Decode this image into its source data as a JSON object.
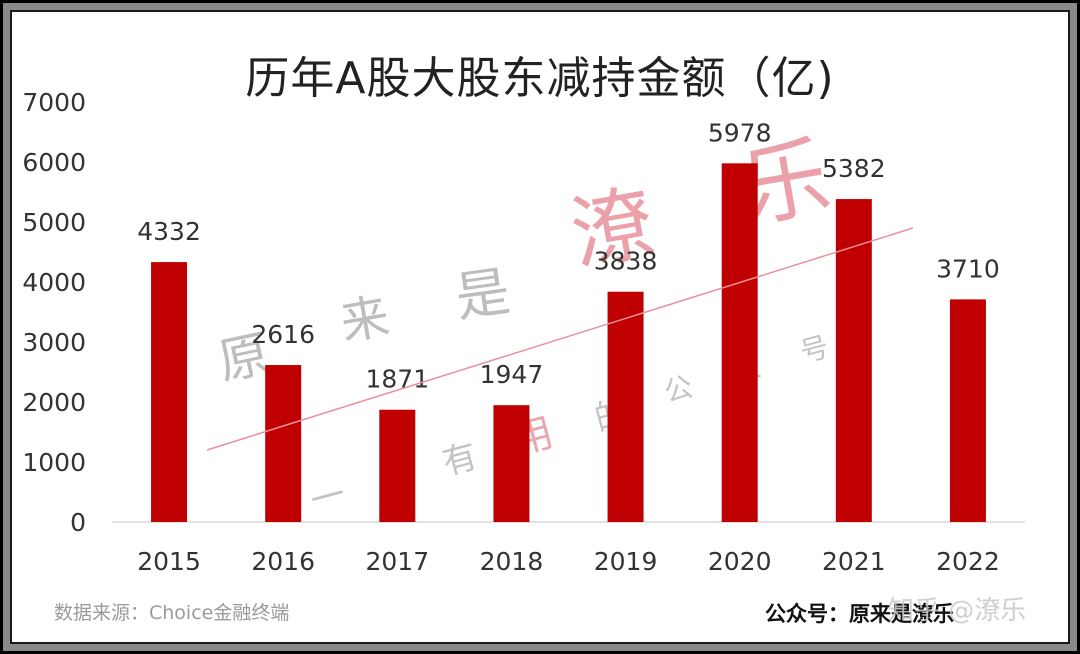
{
  "chart_data": {
    "type": "bar",
    "title": "历年A股大股东减持金额（亿)",
    "categories": [
      "2015",
      "2016",
      "2017",
      "2018",
      "2019",
      "2020",
      "2021",
      "2022"
    ],
    "values": [
      4332,
      2616,
      1871,
      1947,
      3838,
      5978,
      5382,
      3710
    ],
    "ylim": [
      0,
      7000
    ],
    "yticks": [
      "0",
      "1000",
      "2000",
      "3000",
      "4000",
      "5000",
      "6000",
      "7000"
    ],
    "data_labels": [
      "4332",
      "2616",
      "1871",
      "1947",
      "3838",
      "5978",
      "5382",
      "3710"
    ],
    "bar_color": "#c00000",
    "trendline_color": "#e8919c",
    "grid": false
  },
  "footer": {
    "source": "数据来源：Choice金融终端",
    "account": "公众号：原来是潦乐",
    "site_mark": "知乎 @潦乐"
  },
  "watermark": {
    "chars": [
      "原",
      "来",
      "是",
      "潦",
      "乐",
      "一",
      "个",
      "有",
      "用",
      "的",
      "公",
      "众",
      "号"
    ]
  }
}
